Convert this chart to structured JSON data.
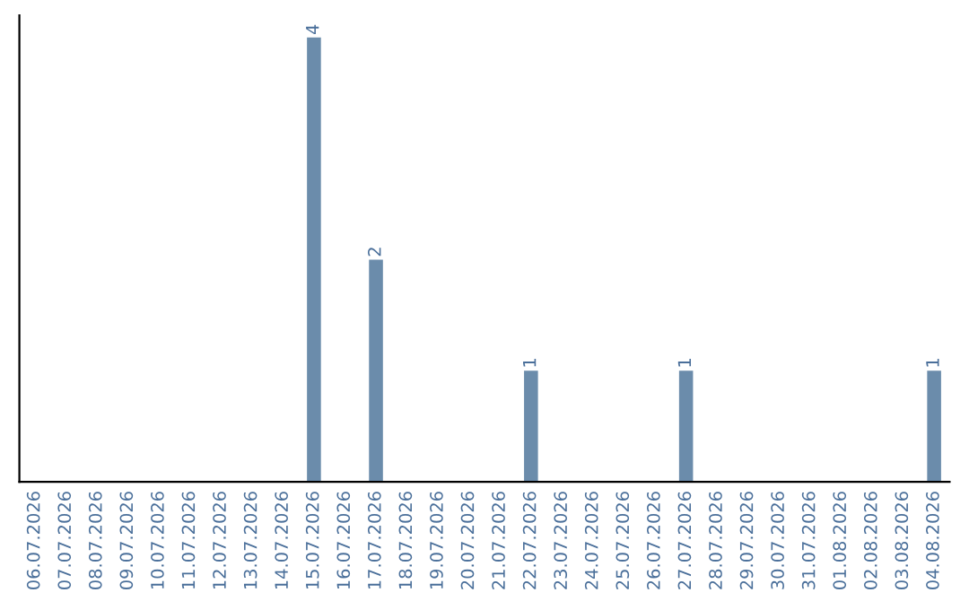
{
  "chart_data": {
    "type": "bar",
    "categories": [
      "06.07.2026",
      "07.07.2026",
      "08.07.2026",
      "09.07.2026",
      "10.07.2026",
      "11.07.2026",
      "12.07.2026",
      "13.07.2026",
      "14.07.2026",
      "15.07.2026",
      "16.07.2026",
      "17.07.2026",
      "18.07.2026",
      "19.07.2026",
      "20.07.2026",
      "21.07.2026",
      "22.07.2026",
      "23.07.2026",
      "24.07.2026",
      "25.07.2026",
      "26.07.2026",
      "27.07.2026",
      "28.07.2026",
      "29.07.2026",
      "30.07.2026",
      "31.07.2026",
      "01.08.2026",
      "02.08.2026",
      "03.08.2026",
      "04.08.2026"
    ],
    "values": [
      0,
      0,
      0,
      0,
      0,
      0,
      0,
      0,
      0,
      4,
      0,
      2,
      0,
      0,
      0,
      0,
      1,
      0,
      0,
      0,
      0,
      1,
      0,
      0,
      0,
      0,
      0,
      0,
      0,
      1
    ],
    "value_labels": [
      null,
      null,
      null,
      null,
      null,
      null,
      null,
      null,
      null,
      "4",
      null,
      "2",
      null,
      null,
      null,
      null,
      "1",
      null,
      null,
      null,
      null,
      "1",
      null,
      null,
      null,
      null,
      null,
      null,
      null,
      "1"
    ],
    "color": "#6b8cab",
    "tick_labels": "x",
    "grid": false,
    "legend": false
  }
}
